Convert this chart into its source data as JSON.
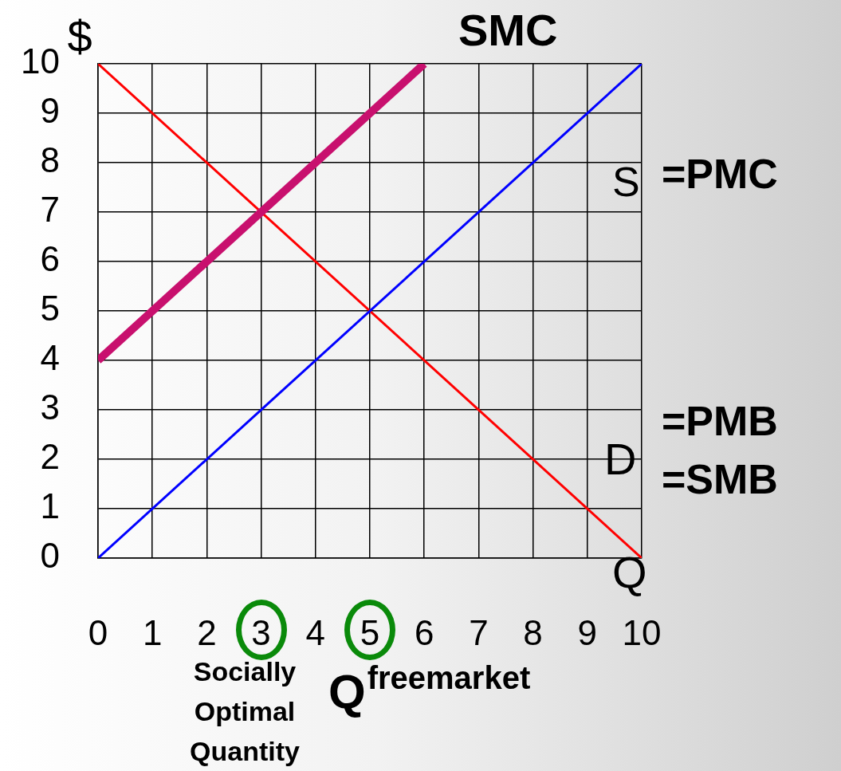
{
  "chart_data": {
    "type": "line",
    "xlabel": "Q",
    "ylabel": "$",
    "xlim": [
      0,
      10
    ],
    "ylim": [
      0,
      10
    ],
    "xticks": [
      0,
      1,
      2,
      3,
      4,
      5,
      6,
      7,
      8,
      9,
      10
    ],
    "yticks": [
      0,
      1,
      2,
      3,
      4,
      5,
      6,
      7,
      8,
      9,
      10
    ],
    "grid": true,
    "legend": false,
    "marker": "none",
    "line_style": "solid",
    "series": [
      {
        "name": "SMC",
        "color": "#c8106e",
        "x": [
          0,
          6
        ],
        "values": [
          4,
          10
        ]
      },
      {
        "name": "S",
        "color": "#0000ff",
        "x": [
          0,
          10
        ],
        "values": [
          0,
          10
        ]
      },
      {
        "name": "D",
        "color": "#ff0000",
        "x": [
          0,
          10
        ],
        "values": [
          10,
          0
        ]
      }
    ],
    "annotations": [
      "=PMC",
      "=PMB",
      "=SMB",
      "Socially Optimal Quantity",
      "Q$^{freemarket}$"
    ]
  }
}
